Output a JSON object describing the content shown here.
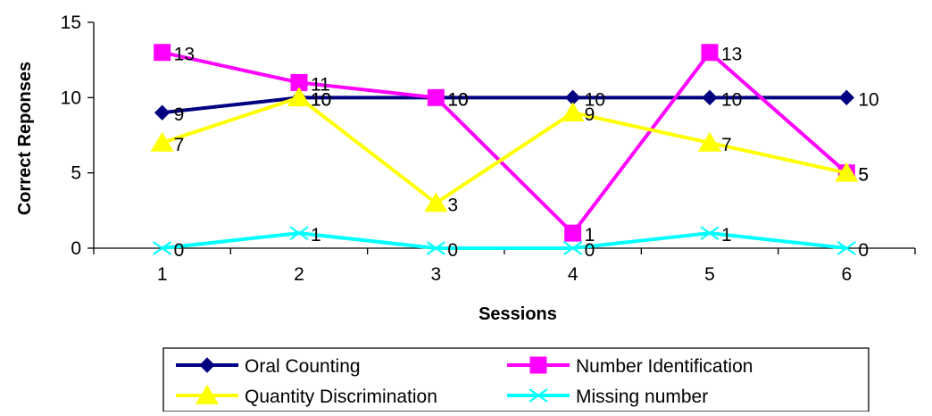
{
  "chart_data": {
    "type": "line",
    "xlabel": "Sessions",
    "ylabel": "Correct Reponses",
    "x": [
      1,
      2,
      3,
      4,
      5,
      6
    ],
    "ylim": [
      0,
      15
    ],
    "yticks": [
      0,
      5,
      10,
      15
    ],
    "grid": false,
    "legend_position": "bottom",
    "series": [
      {
        "name": "Oral Counting",
        "values": [
          9,
          10,
          10,
          10,
          10,
          10
        ],
        "color": "#000080",
        "marker": "diamond"
      },
      {
        "name": "Number Identification",
        "values": [
          13,
          11,
          10,
          1,
          13,
          5
        ],
        "color": "#FF00FF",
        "marker": "square"
      },
      {
        "name": "Quantity Discrimination",
        "values": [
          7,
          10,
          3,
          9,
          7,
          5
        ],
        "color": "#FFFF00",
        "marker": "triangle"
      },
      {
        "name": "Missing number",
        "values": [
          0,
          1,
          0,
          0,
          1,
          0
        ],
        "color": "#00FFFF",
        "marker": "x"
      }
    ]
  }
}
